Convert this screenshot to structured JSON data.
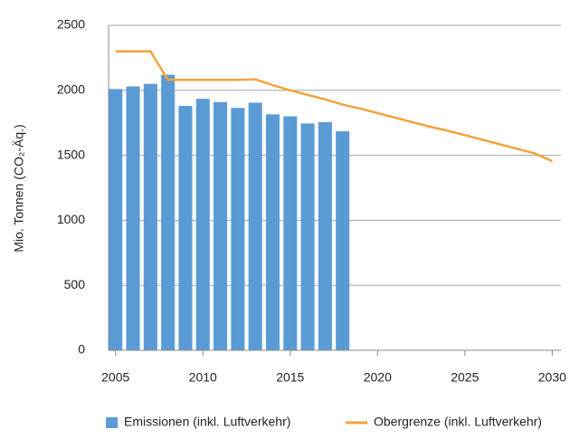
{
  "chart_data": {
    "type": "combo",
    "ylabel": "Mio. Tonnen (CO₂-Äq.)",
    "x": [
      2005,
      2006,
      2007,
      2008,
      2009,
      2010,
      2011,
      2012,
      2013,
      2014,
      2015,
      2016,
      2017,
      2018,
      2019,
      2020,
      2021,
      2022,
      2023,
      2024,
      2025,
      2026,
      2027,
      2028,
      2029,
      2030
    ],
    "series": [
      {
        "name": "Emissionen (inkl. Luftverkehr)",
        "type": "bar",
        "color": "#5b9bd5",
        "values": [
          2010,
          2030,
          2050,
          2120,
          1880,
          1935,
          1910,
          1865,
          1905,
          1815,
          1800,
          1745,
          1755,
          1685,
          null,
          null,
          null,
          null,
          null,
          null,
          null,
          null,
          null,
          null,
          null,
          null
        ]
      },
      {
        "name": "Obergrenze (inkl. Luftverkehr)",
        "type": "line",
        "color": "#f4a23c",
        "values": [
          2300,
          2300,
          2300,
          2080,
          2080,
          2080,
          2080,
          2080,
          2085,
          2040,
          2000,
          1965,
          1930,
          1890,
          1860,
          1825,
          1790,
          1755,
          1720,
          1690,
          1655,
          1620,
          1585,
          1550,
          1515,
          1455
        ]
      }
    ],
    "xlim": [
      2004.6,
      2030.5
    ],
    "xticks": [
      2005,
      2010,
      2015,
      2020,
      2025,
      2030
    ],
    "ylim": [
      0,
      2500
    ],
    "yticks": [
      0,
      500,
      1000,
      1500,
      2000,
      2500
    ],
    "grid": true,
    "legend": "bottom"
  }
}
